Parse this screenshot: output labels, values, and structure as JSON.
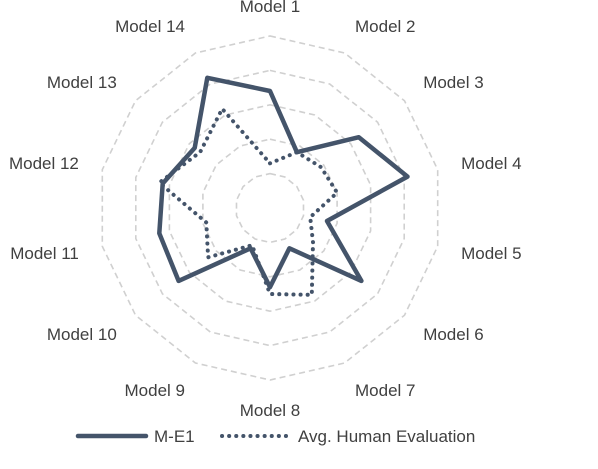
{
  "chart_data": {
    "type": "radar",
    "categories": [
      "Model 1",
      "Model 2",
      "Model 3",
      "Model 4",
      "Model 5",
      "Model 6",
      "Model 7",
      "Model 8",
      "Model 9",
      "Model 10",
      "Model 11",
      "Model 12",
      "Model 13",
      "Model 14"
    ],
    "rlim": [
      0,
      5
    ],
    "grid": true,
    "grid_rings": 5,
    "legend_position": "bottom",
    "series": [
      {
        "name": "M-E1",
        "style": "solid",
        "color": "#44546a",
        "values": [
          3.4,
          1.8,
          3.3,
          4.1,
          1.7,
          3.4,
          1.3,
          2.3,
          1.3,
          3.4,
          3.3,
          3.2,
          2.8,
          4.2
        ]
      },
      {
        "name": "Avg. Human Evaluation",
        "style": "dotted",
        "color": "#44546a",
        "values": [
          1.3,
          1.8,
          1.9,
          2.0,
          1.2,
          1.6,
          2.8,
          2.5,
          1.2,
          2.3,
          1.9,
          3.3,
          2.6,
          3.2
        ]
      }
    ]
  }
}
